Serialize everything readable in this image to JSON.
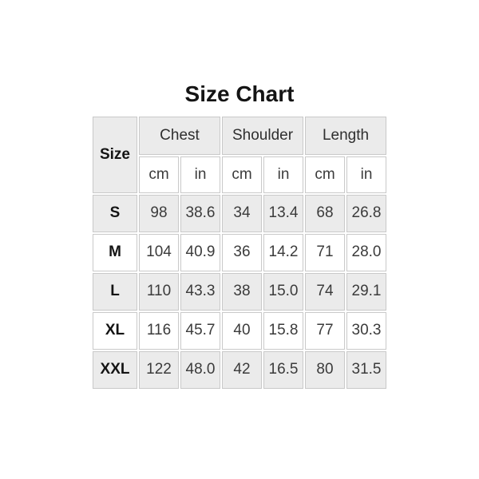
{
  "title": "Size Chart",
  "colors": {
    "header_bg": "#ebebeb",
    "stripe_bg": "#ebebeb",
    "plain_bg": "#ffffff",
    "border": "#c9c9c9",
    "value_text": "#3b3b3b",
    "label_text": "#141414"
  },
  "table": {
    "size_header": "Size",
    "group_headers": [
      "Chest",
      "Shoulder",
      "Length"
    ],
    "units": [
      "cm",
      "in",
      "cm",
      "in",
      "cm",
      "in"
    ],
    "rows": [
      {
        "size": "S",
        "values": [
          "98",
          "38.6",
          "34",
          "13.4",
          "68",
          "26.8"
        ]
      },
      {
        "size": "M",
        "values": [
          "104",
          "40.9",
          "36",
          "14.2",
          "71",
          "28.0"
        ]
      },
      {
        "size": "L",
        "values": [
          "110",
          "43.3",
          "38",
          "15.0",
          "74",
          "29.1"
        ]
      },
      {
        "size": "XL",
        "values": [
          "116",
          "45.7",
          "40",
          "15.8",
          "77",
          "30.3"
        ]
      },
      {
        "size": "XXL",
        "values": [
          "122",
          "48.0",
          "42",
          "16.5",
          "80",
          "31.5"
        ]
      }
    ]
  },
  "chart_data": {
    "type": "table",
    "title": "Size Chart",
    "columns": [
      "Size",
      "Chest cm",
      "Chest in",
      "Shoulder cm",
      "Shoulder in",
      "Length cm",
      "Length in"
    ],
    "rows": [
      [
        "S",
        98,
        38.6,
        34,
        13.4,
        68,
        26.8
      ],
      [
        "M",
        104,
        40.9,
        36,
        14.2,
        71,
        28.0
      ],
      [
        "L",
        110,
        43.3,
        38,
        15.0,
        74,
        29.1
      ],
      [
        "XL",
        116,
        45.7,
        40,
        15.8,
        77,
        30.3
      ],
      [
        "XXL",
        122,
        48.0,
        42,
        16.5,
        80,
        31.5
      ]
    ]
  }
}
